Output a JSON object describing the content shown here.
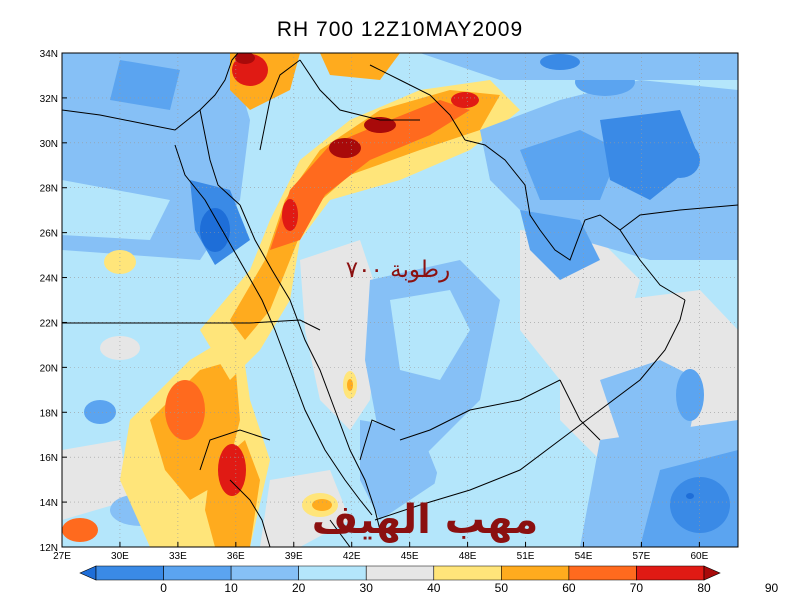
{
  "title": "RH 700 12Z10MAY2009",
  "watermark_small": "رطوبة ٧٠٠",
  "watermark_big": "مهب الهيف",
  "map": {
    "lon_range": [
      27,
      62
    ],
    "lat_range": [
      12,
      34
    ],
    "lon_ticks": [
      {
        "value": 27,
        "label": "27E"
      },
      {
        "value": 30,
        "label": "30E"
      },
      {
        "value": 33,
        "label": "33E"
      },
      {
        "value": 36,
        "label": "36E"
      },
      {
        "value": 39,
        "label": "39E"
      },
      {
        "value": 42,
        "label": "42E"
      },
      {
        "value": 45,
        "label": "45E"
      },
      {
        "value": 48,
        "label": "48E"
      },
      {
        "value": 51,
        "label": "51E"
      },
      {
        "value": 54,
        "label": "54E"
      },
      {
        "value": 57,
        "label": "57E"
      },
      {
        "value": 60,
        "label": "60E"
      }
    ],
    "lat_ticks": [
      {
        "value": 12,
        "label": "12N"
      },
      {
        "value": 14,
        "label": "14N"
      },
      {
        "value": 16,
        "label": "16N"
      },
      {
        "value": 18,
        "label": "18N"
      },
      {
        "value": 20,
        "label": "20N"
      },
      {
        "value": 22,
        "label": "22N"
      },
      {
        "value": 24,
        "label": "24N"
      },
      {
        "value": 26,
        "label": "26N"
      },
      {
        "value": 28,
        "label": "28N"
      },
      {
        "value": 30,
        "label": "30N"
      },
      {
        "value": 32,
        "label": "32N"
      },
      {
        "value": 34,
        "label": "34N"
      }
    ]
  },
  "colorbar": {
    "colors": [
      "#1e6ed8",
      "#3a8ae6",
      "#5ba4f0",
      "#86c0f6",
      "#b4e6fb",
      "#e6e6e6",
      "#ffe57a",
      "#ffab1e",
      "#ff6a1e",
      "#e01a14",
      "#a80a0a"
    ],
    "labels": [
      "0",
      "10",
      "20",
      "30",
      "40",
      "50",
      "60",
      "70",
      "80",
      "90"
    ]
  },
  "colors": {
    "dry": "#5ba4f0",
    "moist": "#ff6a1e",
    "frame": "#000000",
    "watermark": "#8b1010"
  }
}
